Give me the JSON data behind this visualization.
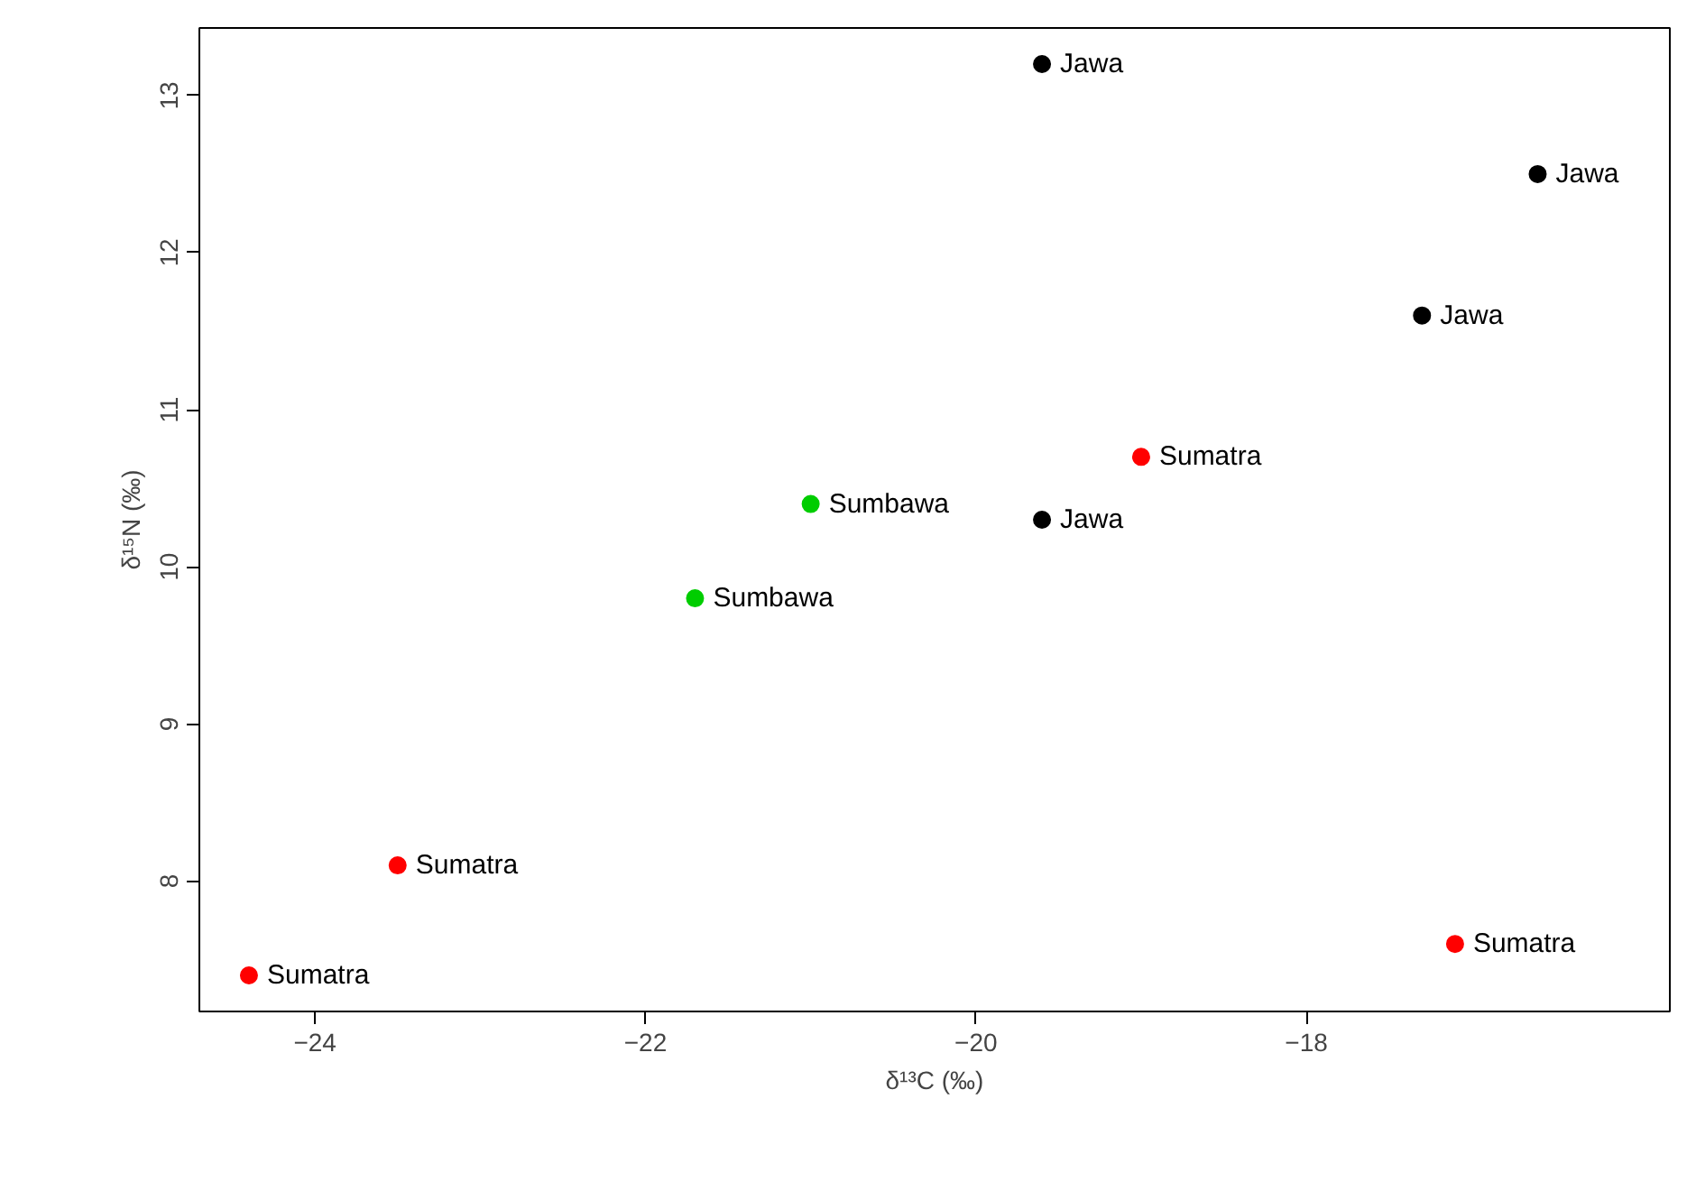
{
  "chart_data": {
    "type": "scatter",
    "xlabel": "δ¹³C (‰)",
    "ylabel": "δ¹⁵N (‰)",
    "series": [
      {
        "name": "Jawa",
        "color": "#000000",
        "x": [
          -19.6,
          -16.6,
          -17.3,
          -19.6
        ],
        "values": [
          13.2,
          12.5,
          11.6,
          10.3
        ]
      },
      {
        "name": "Sumatra",
        "color": "#ff0000",
        "x": [
          -19.0,
          -23.5,
          -24.4,
          -17.1
        ],
        "values": [
          10.7,
          8.1,
          7.4,
          7.6
        ]
      },
      {
        "name": "Sumbawa",
        "color": "#00cd00",
        "x": [
          -21.0,
          -21.7
        ],
        "values": [
          10.4,
          9.8
        ]
      }
    ],
    "xlim": [
      -24.7,
      -15.8
    ],
    "ylim": [
      7.17,
      13.43
    ],
    "xticks": [
      -24,
      -22,
      -20,
      -18
    ],
    "yticks": [
      8,
      9,
      10,
      11,
      12,
      13
    ],
    "marker": "circle",
    "grid": false
  }
}
